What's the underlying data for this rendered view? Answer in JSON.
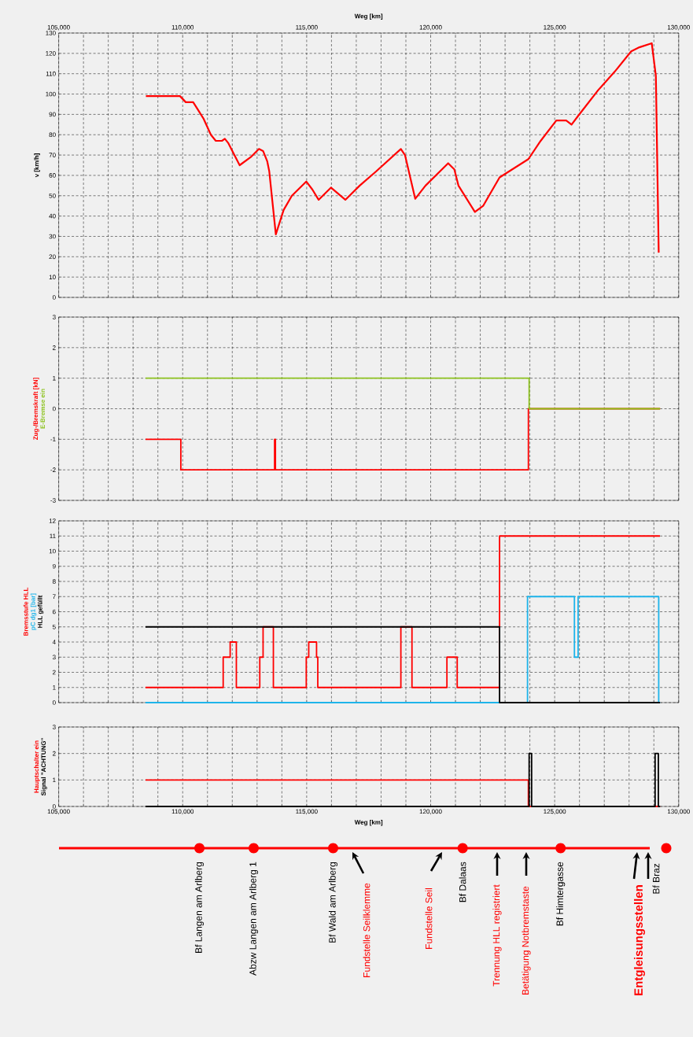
{
  "chart_data": [
    {
      "type": "line",
      "xlabel": "Weg [km]",
      "ylabel": "v [km/h]",
      "xlim": [
        105000,
        130000
      ],
      "ylim": [
        0,
        130
      ],
      "grid": true,
      "xticks": [
        {
          "value": 105000,
          "label": "105,000"
        },
        {
          "value": 106000,
          "label": null
        },
        {
          "value": 107000,
          "label": null
        },
        {
          "value": 108000,
          "label": null
        },
        {
          "value": 109000,
          "label": null
        },
        {
          "value": 110000,
          "label": "110,000"
        },
        {
          "value": 111000,
          "label": null
        },
        {
          "value": 112000,
          "label": null
        },
        {
          "value": 113000,
          "label": null
        },
        {
          "value": 114000,
          "label": null
        },
        {
          "value": 115000,
          "label": "115,000"
        },
        {
          "value": 116000,
          "label": null
        },
        {
          "value": 117000,
          "label": null
        },
        {
          "value": 118000,
          "label": null
        },
        {
          "value": 119000,
          "label": null
        },
        {
          "value": 120000,
          "label": "120,000"
        },
        {
          "value": 121000,
          "label": null
        },
        {
          "value": 122000,
          "label": null
        },
        {
          "value": 123000,
          "label": null
        },
        {
          "value": 124000,
          "label": null
        },
        {
          "value": 125000,
          "label": "125,000"
        },
        {
          "value": 126000,
          "label": null
        },
        {
          "value": 127000,
          "label": null
        },
        {
          "value": 128000,
          "label": null
        },
        {
          "value": 129000,
          "label": null
        },
        {
          "value": 130000,
          "label": "130,000"
        }
      ],
      "yticks": [
        0,
        10,
        20,
        30,
        40,
        50,
        60,
        70,
        80,
        90,
        100,
        110,
        120,
        130
      ],
      "series": [
        {
          "color": "#ff0000",
          "x": [
            108516,
            109892,
            110124,
            110423,
            110837,
            111136,
            111335,
            111584,
            111700,
            111833,
            112297,
            112745,
            113076,
            113242,
            113408,
            113491,
            113756,
            114071,
            114403,
            114983,
            115232,
            115481,
            115978,
            116559,
            117139,
            117803,
            118798,
            118964,
            119378,
            119793,
            120705,
            120954,
            121119,
            121783,
            122114,
            122778,
            123939,
            124436,
            125066,
            125464,
            125680,
            125929,
            126758,
            127421,
            128085,
            128416,
            128914,
            129080,
            129195
          ],
          "values": [
            99,
            99,
            96,
            96,
            88,
            80,
            77,
            77,
            78,
            76,
            65,
            69,
            73,
            72,
            67,
            62,
            31,
            43,
            50,
            57,
            53,
            48,
            54,
            48,
            55,
            62,
            73,
            70,
            48.5,
            55,
            66,
            63,
            55,
            42,
            45,
            59,
            68,
            77,
            87,
            87,
            85,
            89,
            102,
            111,
            121,
            123,
            125,
            109,
            22
          ]
        }
      ]
    },
    {
      "type": "step",
      "xlim": [
        105000,
        130000
      ],
      "ylim": [
        -3,
        3
      ],
      "grid": true,
      "tick_labels": "y",
      "xticks": [
        {
          "value": 105000,
          "label": null
        },
        {
          "value": 106000,
          "label": null
        },
        {
          "value": 107000,
          "label": null
        },
        {
          "value": 108000,
          "label": null
        },
        {
          "value": 109000,
          "label": null
        },
        {
          "value": 110000,
          "label": null
        },
        {
          "value": 111000,
          "label": null
        },
        {
          "value": 112000,
          "label": null
        },
        {
          "value": 113000,
          "label": null
        },
        {
          "value": 114000,
          "label": null
        },
        {
          "value": 115000,
          "label": null
        },
        {
          "value": 116000,
          "label": null
        },
        {
          "value": 117000,
          "label": null
        },
        {
          "value": 118000,
          "label": null
        },
        {
          "value": 119000,
          "label": null
        },
        {
          "value": 120000,
          "label": null
        },
        {
          "value": 121000,
          "label": null
        },
        {
          "value": 122000,
          "label": null
        },
        {
          "value": 123000,
          "label": null
        },
        {
          "value": 124000,
          "label": null
        },
        {
          "value": 125000,
          "label": null
        },
        {
          "value": 126000,
          "label": null
        },
        {
          "value": 127000,
          "label": null
        },
        {
          "value": 128000,
          "label": null
        },
        {
          "value": 129000,
          "label": null
        },
        {
          "value": 130000,
          "label": null
        }
      ],
      "yticks": [
        -3,
        -2,
        -1,
        0,
        1,
        2,
        3
      ],
      "series": [
        {
          "name": "Zug-/Bremskraft [kN]",
          "color": "#ff0000",
          "x": [
            108500,
            109925,
            113706,
            113740,
            123940,
            129250
          ],
          "values": [
            -1,
            -2,
            -1,
            -2,
            0,
            0
          ]
        },
        {
          "name": "E-Bremse ein",
          "color": "#8dc21f",
          "x": [
            108500,
            123970,
            129250
          ],
          "values": [
            1,
            0,
            0
          ]
        }
      ]
    },
    {
      "type": "step",
      "xlim": [
        105000,
        130000
      ],
      "ylim": [
        0,
        12
      ],
      "grid": true,
      "tick_labels": "y",
      "xticks": [
        {
          "value": 105000,
          "label": null
        },
        {
          "value": 106000,
          "label": null
        },
        {
          "value": 107000,
          "label": null
        },
        {
          "value": 108000,
          "label": null
        },
        {
          "value": 109000,
          "label": null
        },
        {
          "value": 110000,
          "label": null
        },
        {
          "value": 111000,
          "label": null
        },
        {
          "value": 112000,
          "label": null
        },
        {
          "value": 113000,
          "label": null
        },
        {
          "value": 114000,
          "label": null
        },
        {
          "value": 115000,
          "label": null
        },
        {
          "value": 116000,
          "label": null
        },
        {
          "value": 117000,
          "label": null
        },
        {
          "value": 118000,
          "label": null
        },
        {
          "value": 119000,
          "label": null
        },
        {
          "value": 120000,
          "label": null
        },
        {
          "value": 121000,
          "label": null
        },
        {
          "value": 122000,
          "label": null
        },
        {
          "value": 123000,
          "label": null
        },
        {
          "value": 124000,
          "label": null
        },
        {
          "value": 125000,
          "label": null
        },
        {
          "value": 126000,
          "label": null
        },
        {
          "value": 127000,
          "label": null
        },
        {
          "value": 128000,
          "label": null
        },
        {
          "value": 129000,
          "label": null
        },
        {
          "value": 130000,
          "label": null
        }
      ],
      "yticks": [
        0,
        1,
        2,
        3,
        4,
        5,
        6,
        7,
        8,
        9,
        10,
        11,
        12
      ],
      "series": [
        {
          "name": "Bremsstufe HLL",
          "color": "#ff0000",
          "x": [
            108500,
            111633,
            111915,
            112164,
            113109,
            113242,
            113657,
            114983,
            115083,
            115398,
            115448,
            118798,
            119246,
            120655,
            121070,
            122778,
            129245
          ],
          "values": [
            1,
            3,
            4,
            1,
            3,
            5,
            1,
            3,
            4,
            3,
            1,
            5,
            1,
            3,
            1,
            11,
            11
          ]
        },
        {
          "name": "pC dg1 [bar]",
          "color": "#1eb4ea",
          "x": [
            108500,
            123905,
            125796,
            125945,
            129195,
            129250
          ],
          "values": [
            0,
            7,
            3,
            7,
            0,
            0
          ]
        },
        {
          "name": "HLL gefüllt",
          "color": "#000000",
          "x": [
            108500,
            122778,
            129245
          ],
          "values": [
            5,
            0,
            0
          ]
        }
      ]
    },
    {
      "type": "step",
      "xlabel": "Weg [km]",
      "xlim": [
        105000,
        130000
      ],
      "ylim": [
        0,
        3
      ],
      "grid": true,
      "annotations": [
        "Bf Langen am Arlberg",
        "Abzw Langen am Arlberg 1",
        "Bf Wald am Arlberg",
        "Fundstelle Seilklemme",
        "Fundstelle Seil",
        "Bf Dalaas",
        "Trennung HLL registriert",
        "Betätigung Notbremstaste",
        "Bf Himtergasse",
        "Entgleisungsstellen",
        "Bf Braz"
      ],
      "xticks": [
        {
          "value": 105000,
          "label": "105,000"
        },
        {
          "value": 106000,
          "label": null
        },
        {
          "value": 107000,
          "label": null
        },
        {
          "value": 108000,
          "label": null
        },
        {
          "value": 109000,
          "label": null
        },
        {
          "value": 110000,
          "label": "110,000"
        },
        {
          "value": 111000,
          "label": null
        },
        {
          "value": 112000,
          "label": null
        },
        {
          "value": 113000,
          "label": null
        },
        {
          "value": 114000,
          "label": null
        },
        {
          "value": 115000,
          "label": "115,000"
        },
        {
          "value": 116000,
          "label": null
        },
        {
          "value": 117000,
          "label": null
        },
        {
          "value": 118000,
          "label": null
        },
        {
          "value": 119000,
          "label": null
        },
        {
          "value": 120000,
          "label": "120,000"
        },
        {
          "value": 121000,
          "label": null
        },
        {
          "value": 122000,
          "label": null
        },
        {
          "value": 123000,
          "label": null
        },
        {
          "value": 124000,
          "label": null
        },
        {
          "value": 125000,
          "label": "125,000"
        },
        {
          "value": 126000,
          "label": null
        },
        {
          "value": 127000,
          "label": null
        },
        {
          "value": 128000,
          "label": null
        },
        {
          "value": 129000,
          "label": null
        },
        {
          "value": 130000,
          "label": "130,000"
        }
      ],
      "yticks": [
        0,
        1,
        2,
        3
      ],
      "series": [
        {
          "name": "Hauptschalter ein",
          "color": "#ff0000",
          "x": [
            108500,
            123939,
            129250
          ],
          "values": [
            1,
            0,
            0
          ]
        },
        {
          "name": "Signal \"ACHTUNG\"",
          "color": "#000000",
          "x": [
            108500,
            123970,
            124070,
            129050,
            129180,
            129250
          ],
          "values": [
            0,
            2,
            0,
            2,
            0,
            0
          ]
        }
      ]
    }
  ]
}
